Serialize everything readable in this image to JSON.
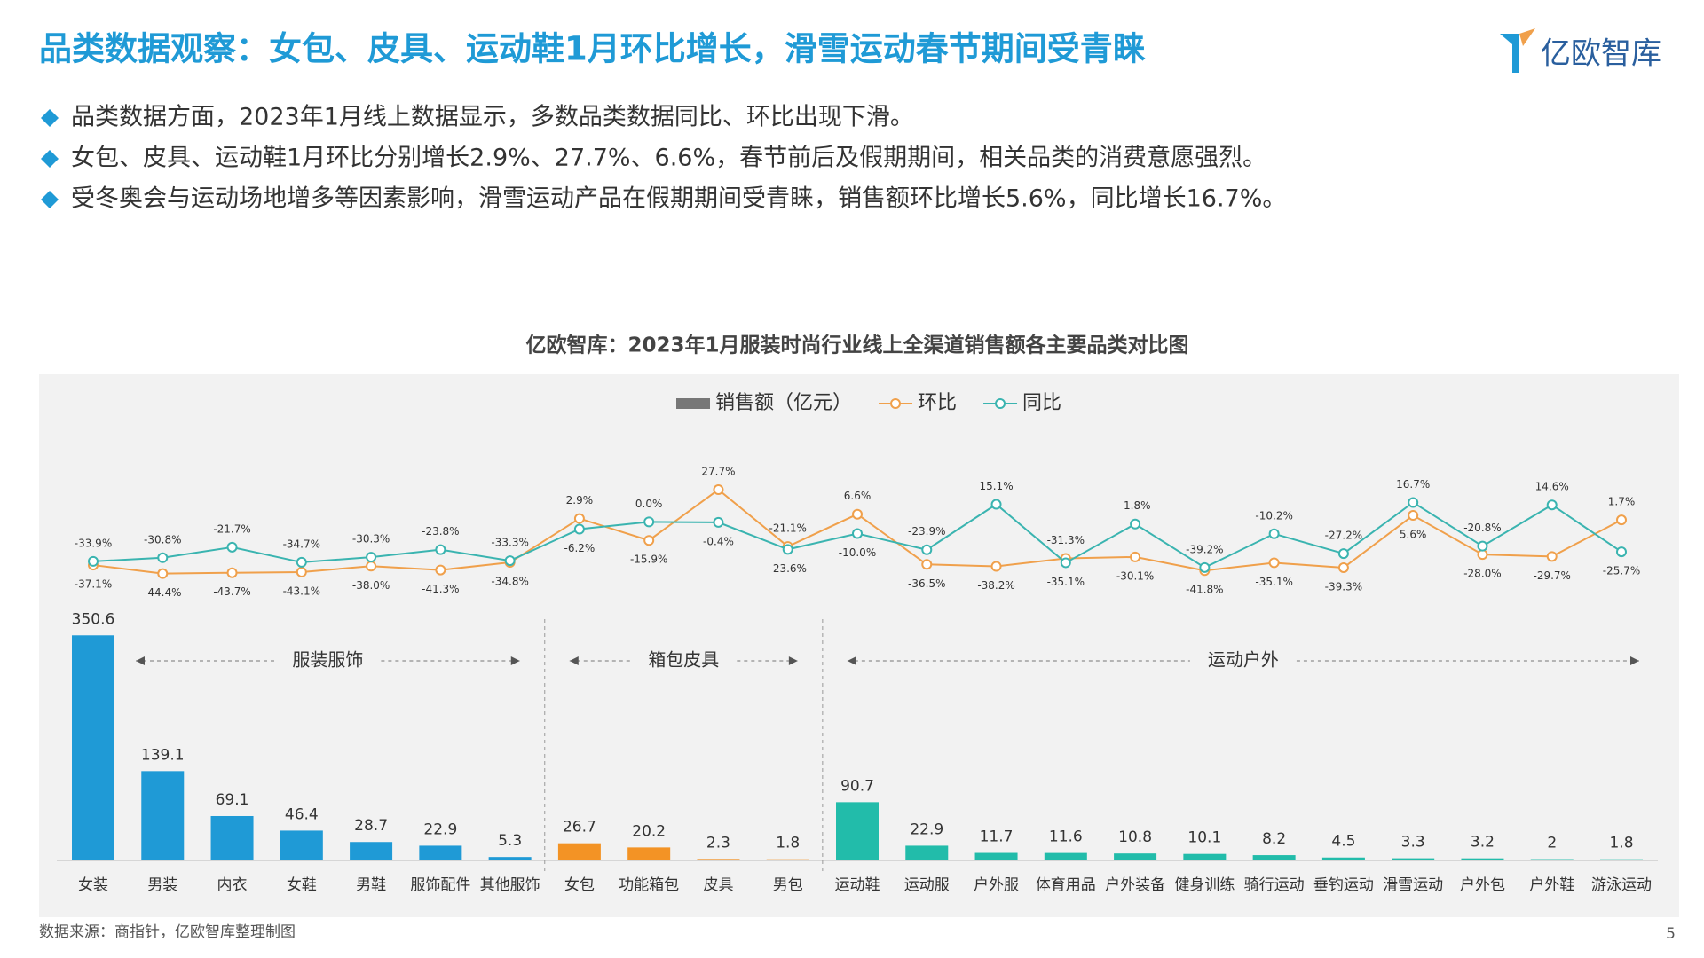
{
  "header": {
    "title": "品类数据观察：女包、皮具、运动鞋1月环比增长，滑雪运动春节期间受青睐",
    "logo": "亿欧智库"
  },
  "bullets": [
    "品类数据方面，2023年1月线上数据显示，多数品类数据同比、环比出现下滑。",
    "女包、皮具、运动鞋1月环比分别增长2.9%、27.7%、6.6%，春节前后及假期期间，相关品类的消费意愿强烈。",
    "受冬奥会与运动场地增多等因素影响，滑雪运动产品在假期期间受青睐，销售额环比增长5.6%，同比增长16.7%。"
  ],
  "chart_data": {
    "type": "bar-line",
    "title": "亿欧智库：2023年1月服装时尚行业线上全渠道销售额各主要品类对比图",
    "groups": [
      {
        "name": "服装服饰",
        "color": "#1f9ad6",
        "categories": [
          "女装",
          "男装",
          "内衣",
          "女鞋",
          "男鞋",
          "服饰配件",
          "其他服饰"
        ]
      },
      {
        "name": "箱包皮具",
        "color": "#f39325",
        "categories": [
          "女包",
          "功能箱包",
          "皮具",
          "男包"
        ]
      },
      {
        "name": "运动户外",
        "color": "#22bcaa",
        "categories": [
          "运动鞋",
          "运动服",
          "户外服",
          "体育用品",
          "户外装备",
          "健身训练",
          "骑行运动",
          "垂钓运动",
          "滑雪运动",
          "户外包",
          "户外鞋",
          "游泳运动"
        ]
      }
    ],
    "series": [
      {
        "name": "销售额（亿元）",
        "color": "#777777",
        "values": [
          350.6,
          139.1,
          69.1,
          46.4,
          28.7,
          22.9,
          5.3,
          26.7,
          20.2,
          2.3,
          1.8,
          90.7,
          22.9,
          11.7,
          11.6,
          10.8,
          10.1,
          8.2,
          4.5,
          3.3,
          3.2,
          2.0,
          1.8
        ]
      },
      {
        "name": "环比",
        "color": "#f0a04b",
        "axis": "y2",
        "values": [
          -37.1,
          -44.4,
          -43.7,
          -43.1,
          -38.0,
          -41.3,
          -34.8,
          2.9,
          -15.9,
          27.7,
          -21.1,
          6.6,
          -36.5,
          -38.2,
          -31.3,
          -30.1,
          -41.8,
          -35.1,
          -39.3,
          5.6,
          -28.0,
          -29.7,
          1.7
        ],
        "value_labels": [
          "-37.1%",
          "-44.4%",
          "-43.7%",
          "-43.1%",
          "-38.0%",
          "-41.3%",
          "-34.8%",
          "2.9%",
          "-15.9%",
          "27.7%",
          "-21.1%",
          "6.6%",
          "-36.5%",
          "-38.2%",
          "-31.3%",
          "-30.1%",
          "-41.8%",
          "-35.1%",
          "-39.3%",
          "5.6%",
          "-28.0%",
          "-29.7%",
          "1.7%"
        ]
      },
      {
        "name": "同比",
        "color": "#3ab4b0",
        "axis": "y2",
        "values": [
          -33.9,
          -30.8,
          -21.7,
          -34.7,
          -30.3,
          -23.8,
          -33.3,
          -6.2,
          0.0,
          -0.4,
          -23.6,
          -10.0,
          -23.9,
          15.1,
          -35.1,
          -1.8,
          -39.2,
          -10.2,
          -27.2,
          16.7,
          -20.8,
          14.6,
          -25.7
        ],
        "value_labels": [
          "-33.9%",
          "-30.8%",
          "-21.7%",
          "-34.7%",
          "-30.3%",
          "-23.8%",
          "-33.3%",
          "-6.2%",
          "0.0%",
          "-0.4%",
          "-23.6%",
          "-10.0%",
          "-23.9%",
          "15.1%",
          "-35.1%",
          "-1.8%",
          "-39.2%",
          "-10.2%",
          "-27.2%",
          "16.7%",
          "-20.8%",
          "14.6%",
          "-25.7%"
        ]
      }
    ],
    "ylim": [
      0,
      380
    ],
    "y2lim": [
      -50,
      30
    ],
    "source": "数据来源：商指针，亿欧智库整理制图"
  },
  "footer": {
    "page": "5"
  }
}
